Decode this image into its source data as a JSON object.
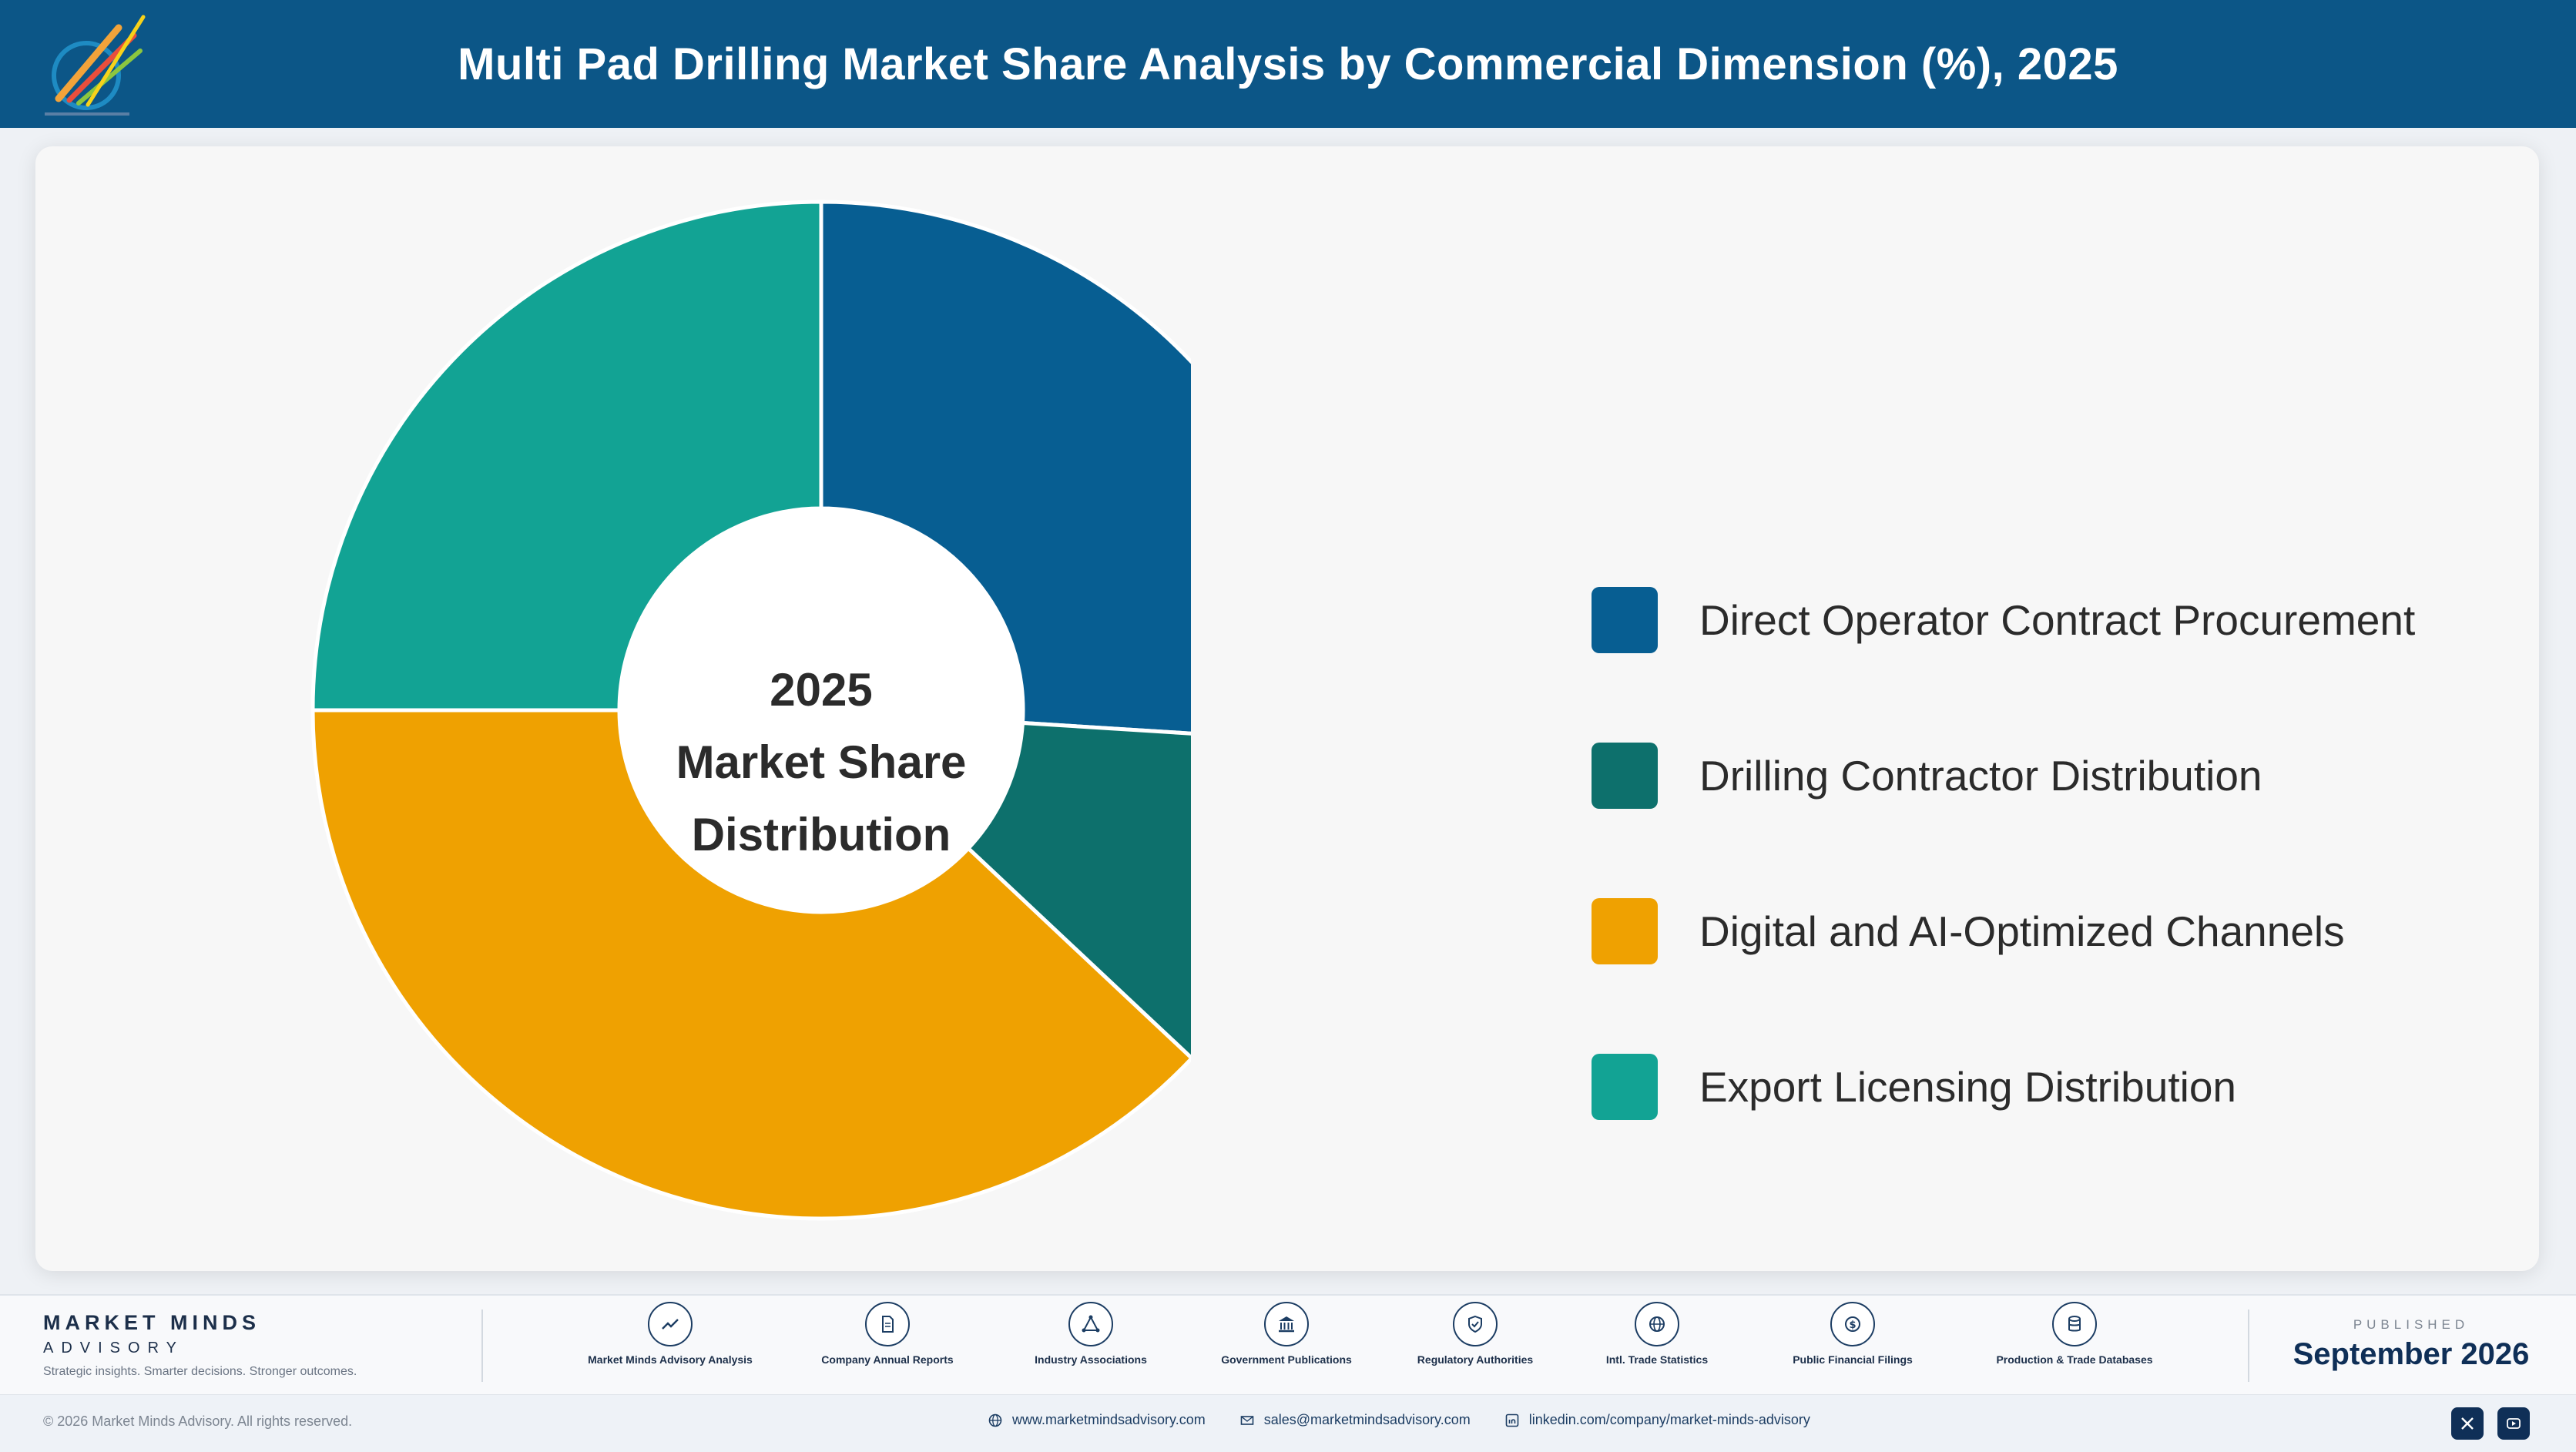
{
  "header": {
    "title": "Multi Pad Drilling Market Share Analysis by Commercial Dimension (%), 2025"
  },
  "chart_data": {
    "type": "pie",
    "style": "donut",
    "categories": [
      "Direct Operator Contract Procurement",
      "Drilling Contractor Distribution",
      "Digital and AI-Optimized Channels",
      "Export Licensing Distribution"
    ],
    "values": [
      26,
      11,
      38,
      25
    ],
    "colors": [
      "#075e92",
      "#0d706c",
      "#efa101",
      "#12a394"
    ],
    "center_label": [
      "2025",
      "Market Share",
      "Distribution"
    ],
    "legend_position": "right",
    "start_angle": "12 o'clock",
    "direction": "clockwise"
  },
  "footer": {
    "brand_name": "MARKET MINDS",
    "brand_sub": "ADVISORY",
    "tagline": "Strategic insights. Smarter decisions. Stronger outcomes.",
    "sources": [
      {
        "label": "Market Minds Advisory Analysis",
        "icon": "trend-icon"
      },
      {
        "label": "Company Annual Reports",
        "icon": "document-icon"
      },
      {
        "label": "Industry Associations",
        "icon": "network-icon"
      },
      {
        "label": "Government Publications",
        "icon": "government-icon"
      },
      {
        "label": "Regulatory Authorities",
        "icon": "shield-icon"
      },
      {
        "label": "Intl. Trade Statistics",
        "icon": "globe-icon"
      },
      {
        "label": "Public Financial Filings",
        "icon": "coin-icon"
      },
      {
        "label": "Production & Trade Databases",
        "icon": "database-icon"
      }
    ],
    "published_label": "PUBLISHED",
    "published_date": "September 2026",
    "copyright": "© 2026 Market Minds Advisory. All rights reserved.",
    "website": "www.marketmindsadvisory.com",
    "email": "sales@marketmindsadvisory.com",
    "linkedin": "linkedin.com/company/market-minds-advisory"
  }
}
